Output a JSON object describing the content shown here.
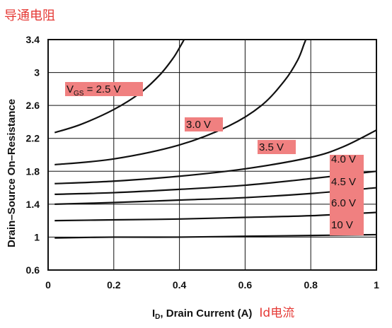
{
  "title_cn": "导通电阻",
  "x_axis": {
    "label_main": "I",
    "label_sub": "D",
    "label_rest": ", Drain Current (A)",
    "label_cn": "Id电流"
  },
  "y_axis": {
    "label": "Drain–Source On–Resistance"
  },
  "colors": {
    "highlight": "#f08080",
    "curve": "#111111",
    "grid": "#111111",
    "accent": "#e53935"
  },
  "chart_data": {
    "type": "line",
    "xlim": [
      0,
      1
    ],
    "ylim": [
      0.6,
      3.4
    ],
    "x_ticks": [
      "0",
      "0.2",
      "0.4",
      "0.6",
      "0.8",
      "1"
    ],
    "y_ticks": [
      "0.6",
      "1",
      "1.4",
      "1.8",
      "2.2",
      "2.6",
      "3",
      "3.4"
    ],
    "grid": true,
    "series": [
      {
        "name": "VGS = 2.5 V",
        "label_main": "V",
        "label_sub": "GS",
        "label_rest": " = 2.5 V",
        "x": [
          0.02,
          0.1,
          0.2,
          0.28,
          0.34,
          0.38,
          0.4,
          0.42,
          0.43
        ],
        "y": [
          2.27,
          2.37,
          2.55,
          2.75,
          2.97,
          3.17,
          3.3,
          3.44,
          3.5
        ]
      },
      {
        "name": "3.0 V",
        "label_main": "3.0 V",
        "label_sub": "",
        "label_rest": "",
        "x": [
          0.02,
          0.2,
          0.4,
          0.55,
          0.65,
          0.72,
          0.76,
          0.78,
          0.79
        ],
        "y": [
          1.88,
          1.95,
          2.12,
          2.35,
          2.6,
          2.9,
          3.15,
          3.35,
          3.45
        ]
      },
      {
        "name": "3.5 V",
        "label_main": "3.5 V",
        "label_sub": "",
        "label_rest": "",
        "x": [
          0.02,
          0.2,
          0.4,
          0.6,
          0.8,
          0.9,
          1.0
        ],
        "y": [
          1.65,
          1.68,
          1.74,
          1.83,
          1.97,
          2.1,
          2.3
        ]
      },
      {
        "name": "4.0 V",
        "label_main": "4.0 V",
        "label_sub": "",
        "label_rest": "",
        "x": [
          0.02,
          0.2,
          0.4,
          0.6,
          0.8,
          1.0
        ],
        "y": [
          1.52,
          1.54,
          1.58,
          1.63,
          1.71,
          1.8
        ]
      },
      {
        "name": "4.5 V",
        "label_main": "4.5 V",
        "label_sub": "",
        "label_rest": "",
        "x": [
          0.02,
          0.2,
          0.4,
          0.6,
          0.8,
          1.0
        ],
        "y": [
          1.4,
          1.42,
          1.45,
          1.48,
          1.53,
          1.6
        ]
      },
      {
        "name": "6.0 V",
        "label_main": "6.0 V",
        "label_sub": "",
        "label_rest": "",
        "x": [
          0.02,
          0.2,
          0.4,
          0.6,
          0.8,
          1.0
        ],
        "y": [
          1.2,
          1.21,
          1.22,
          1.24,
          1.26,
          1.3
        ]
      },
      {
        "name": "10 V",
        "label_main": "10 V",
        "label_sub": "",
        "label_rest": "",
        "x": [
          0.02,
          0.2,
          0.4,
          0.6,
          0.8,
          1.0
        ],
        "y": [
          0.99,
          1.0,
          1.0,
          1.01,
          1.02,
          1.03
        ]
      }
    ]
  }
}
